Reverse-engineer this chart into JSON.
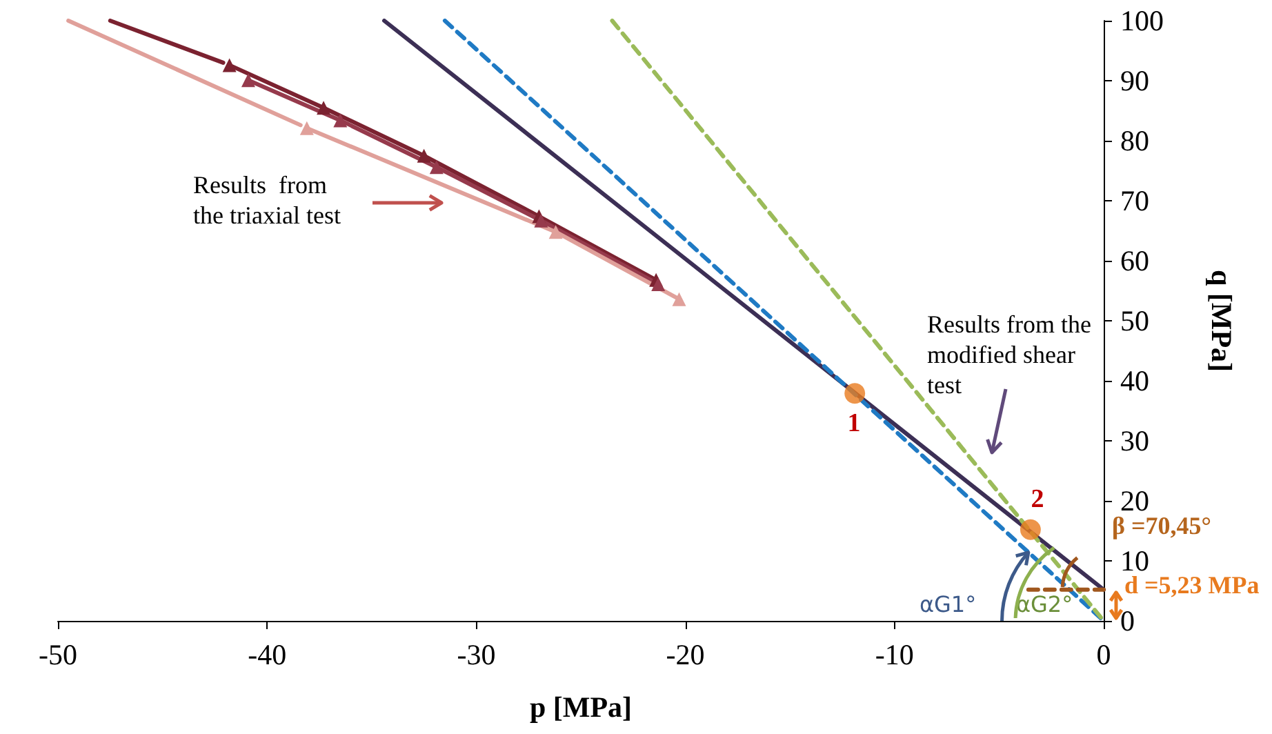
{
  "chart_data": {
    "type": "line",
    "xlabel": "p [MPa]",
    "ylabel": "q [MPa]",
    "xlim": [
      -50,
      0
    ],
    "xticks": [
      -50,
      -40,
      -30,
      -20,
      -10,
      0
    ],
    "ylim": [
      0,
      100
    ],
    "yticks": [
      0,
      10,
      20,
      30,
      40,
      50,
      60,
      70,
      80,
      90,
      100
    ],
    "grid": false,
    "marker": "none",
    "line_style": "solid",
    "series": [
      {
        "color": "#7b2230",
        "x": [
          -47.5,
          -42.1
        ],
        "values": [
          100,
          93.0
        ]
      },
      {
        "color": "#7b2230",
        "marker": "triangle",
        "x": [
          -41.8,
          -37.3,
          -32.5,
          -27.0,
          -21.4
        ],
        "values": [
          92.6,
          85.5,
          77.5,
          67.4,
          56.8
        ]
      },
      {
        "color": "#963a4c",
        "marker": "triangle",
        "x": [
          -40.9,
          -36.5,
          -31.9,
          -26.9,
          -21.3
        ],
        "values": [
          90.1,
          83.4,
          75.6,
          66.7,
          56.1
        ]
      },
      {
        "color": "#e0a09a",
        "x": [
          -49.5,
          -38.4
        ],
        "values": [
          100,
          82.6
        ]
      },
      {
        "color": "#e0a09a",
        "marker": "triangle",
        "x": [
          -38.1,
          -26.2,
          -20.3
        ],
        "values": [
          82.1,
          64.8,
          53.6
        ]
      },
      {
        "color": "#3c2f55",
        "x": [
          -34.4,
          0
        ],
        "values": [
          100,
          5.2
        ]
      },
      {
        "color": "#1f7ac4",
        "line_style": "dashed",
        "x": [
          -31.5,
          0
        ],
        "values": [
          100,
          0
        ]
      },
      {
        "color": "#9bbb59",
        "line_style": "dashed",
        "x": [
          -23.5,
          0
        ],
        "values": [
          100,
          0
        ]
      },
      {
        "color": "#a0571e",
        "line_style": "dashed",
        "x": [
          -3.6,
          0
        ],
        "values": [
          5.2,
          5.2
        ]
      },
      {
        "type": "scatter",
        "color": "#e87a1e",
        "marker": "circle",
        "x": [
          -11.9,
          -3.5
        ],
        "values": [
          37.9,
          15.2
        ]
      }
    ],
    "annotations": [
      "Results  from\nthe triaxial test",
      "Results from the\nmodified shear\ntest",
      "1",
      "2",
      "β =70,45°",
      "d =5,23 MPa",
      {
        "text": "αG1°",
        "x": -3.6,
        "y": 11.4
      },
      {
        "text": "αG2°",
        "x": 0,
        "y": 0
      }
    ]
  }
}
